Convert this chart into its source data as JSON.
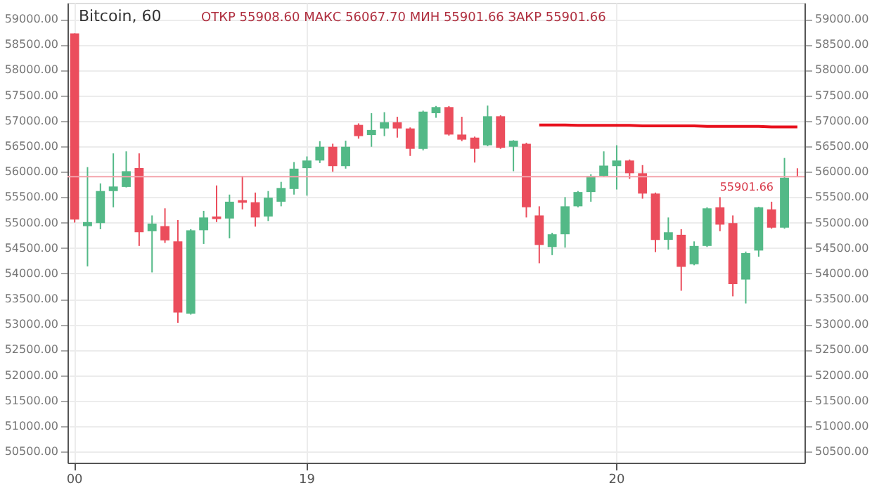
{
  "chart_data": {
    "type": "candlestick",
    "title": "Bitcoin, 60",
    "subtitle": "ОТКР 55908.60  МАКС 56067.70  МИН 55901.66  ЗАКР 55901.66",
    "categories": [
      "00",
      null,
      null,
      null,
      null,
      null,
      null,
      null,
      null,
      null,
      null,
      null,
      null,
      null,
      null,
      null,
      null,
      null,
      "19",
      null,
      null,
      null,
      null,
      null,
      null,
      null,
      null,
      null,
      null,
      null,
      null,
      null,
      null,
      null,
      null,
      null,
      null,
      null,
      null,
      null,
      null,
      null,
      "20",
      null,
      null,
      null,
      null,
      null,
      null,
      null,
      null,
      null,
      null,
      null,
      null,
      null,
      null
    ],
    "ohlc": [
      [
        58720,
        58720,
        55000,
        55060
      ],
      [
        54930,
        56090,
        54140,
        55010
      ],
      [
        54990,
        55770,
        54870,
        55620
      ],
      [
        55620,
        56360,
        55300,
        55710
      ],
      [
        55700,
        56400,
        55690,
        56010
      ],
      [
        56070,
        56360,
        54540,
        54810
      ],
      [
        54830,
        55140,
        54020,
        54980
      ],
      [
        54930,
        55280,
        54600,
        54650
      ],
      [
        54630,
        55050,
        53030,
        53230
      ],
      [
        53210,
        54870,
        53190,
        54850
      ],
      [
        54850,
        55230,
        54580,
        55100
      ],
      [
        55120,
        55730,
        55010,
        55070
      ],
      [
        55080,
        55550,
        54690,
        55410
      ],
      [
        55440,
        55920,
        55260,
        55390
      ],
      [
        55400,
        55590,
        54920,
        55100
      ],
      [
        55120,
        55620,
        55030,
        55490
      ],
      [
        55410,
        55800,
        55320,
        55680
      ],
      [
        55660,
        56190,
        55550,
        56060
      ],
      [
        56070,
        56300,
        55530,
        56220
      ],
      [
        56220,
        56600,
        56170,
        56490
      ],
      [
        56490,
        56550,
        56000,
        56110
      ],
      [
        56110,
        56610,
        56060,
        56490
      ],
      [
        56920,
        56950,
        56650,
        56700
      ],
      [
        56720,
        57150,
        56490,
        56820
      ],
      [
        56850,
        57170,
        56700,
        56970
      ],
      [
        56970,
        57080,
        56670,
        56850
      ],
      [
        56850,
        56870,
        56310,
        56450
      ],
      [
        56450,
        57200,
        56420,
        57180
      ],
      [
        57150,
        57290,
        57060,
        57270
      ],
      [
        57270,
        57290,
        56710,
        56730
      ],
      [
        56730,
        57080,
        56600,
        56630
      ],
      [
        56670,
        56690,
        56180,
        56450
      ],
      [
        56520,
        57300,
        56500,
        57090
      ],
      [
        57090,
        57110,
        56450,
        56470
      ],
      [
        56490,
        56620,
        56010,
        56610
      ],
      [
        56550,
        56570,
        55100,
        55300
      ],
      [
        55140,
        55320,
        54200,
        54560
      ],
      [
        54520,
        54800,
        54360,
        54770
      ],
      [
        54770,
        55500,
        54510,
        55320
      ],
      [
        55320,
        55620,
        55300,
        55600
      ],
      [
        55600,
        55950,
        55410,
        55920
      ],
      [
        55920,
        56400,
        55900,
        56120
      ],
      [
        56110,
        56520,
        55650,
        56220
      ],
      [
        56220,
        56240,
        55860,
        55970
      ],
      [
        55970,
        56130,
        55470,
        55570
      ],
      [
        55570,
        55590,
        54420,
        54660
      ],
      [
        54660,
        55100,
        54470,
        54810
      ],
      [
        54760,
        54870,
        53660,
        54130
      ],
      [
        54180,
        54630,
        54160,
        54540
      ],
      [
        54540,
        55300,
        54520,
        55280
      ],
      [
        55300,
        55500,
        54830,
        54960
      ],
      [
        54990,
        55140,
        53550,
        53790
      ],
      [
        53880,
        54430,
        53410,
        54400
      ],
      [
        54450,
        55310,
        54330,
        55300
      ],
      [
        55260,
        55410,
        54880,
        54900
      ],
      [
        54900,
        56270,
        54880,
        55880
      ],
      [
        55908.6,
        56067.7,
        55901.66,
        55901.66
      ]
    ],
    "colors": [
      "#eb4d5c",
      "#53b987",
      "#53b987",
      "#53b987",
      "#53b987",
      "#eb4d5c",
      "#53b987",
      "#eb4d5c",
      "#eb4d5c",
      "#53b987",
      "#53b987",
      "#eb4d5c",
      "#53b987",
      "#eb4d5c",
      "#eb4d5c",
      "#53b987",
      "#53b987",
      "#53b987",
      "#53b987",
      "#53b987",
      "#eb4d5c",
      "#53b987",
      "#eb4d5c",
      "#53b987",
      "#53b987",
      "#eb4d5c",
      "#eb4d5c",
      "#53b987",
      "#53b987",
      "#eb4d5c",
      "#eb4d5c",
      "#eb4d5c",
      "#53b987",
      "#eb4d5c",
      "#53b987",
      "#eb4d5c",
      "#eb4d5c",
      "#53b987",
      "#53b987",
      "#53b987",
      "#53b987",
      "#53b987",
      "#53b987",
      "#eb4d5c",
      "#eb4d5c",
      "#eb4d5c",
      "#53b987",
      "#eb4d5c",
      "#53b987",
      "#53b987",
      "#eb4d5c",
      "#eb4d5c",
      "#53b987",
      "#53b987",
      "#eb4d5c",
      "#53b987",
      "#eb4d5c"
    ],
    "series": [
      {
        "type": "line",
        "color": "#e8101c",
        "values": [
          null,
          null,
          null,
          null,
          null,
          null,
          null,
          null,
          null,
          null,
          null,
          null,
          null,
          null,
          null,
          null,
          null,
          null,
          null,
          null,
          null,
          null,
          null,
          null,
          null,
          null,
          null,
          null,
          null,
          null,
          null,
          null,
          null,
          null,
          null,
          null,
          56920,
          56920,
          56920,
          56910,
          56910,
          56910,
          56910,
          56910,
          56900,
          56900,
          56900,
          56900,
          56900,
          56890,
          56890,
          56890,
          56890,
          56890,
          56880,
          56880,
          56880
        ]
      }
    ],
    "ref_lines": [
      {
        "axis": "y",
        "value": 55901.66,
        "label": "55901.66",
        "color": "#f4a3ab",
        "line_style": "solid"
      }
    ],
    "ylim": [
      50280,
      59320
    ],
    "yticks": [
      {
        "value": 50500,
        "label": "50500.00"
      },
      {
        "value": 51000,
        "label": "51000.00"
      },
      {
        "value": 51500,
        "label": "51500.00"
      },
      {
        "value": 52000,
        "label": "52000.00"
      },
      {
        "value": 52500,
        "label": "52500.00"
      },
      {
        "value": 53000,
        "label": "53000.00"
      },
      {
        "value": 53500,
        "label": "53500.00"
      },
      {
        "value": 54000,
        "label": "54000.00"
      },
      {
        "value": 54500,
        "label": "54500.00"
      },
      {
        "value": 55000,
        "label": "55000.00"
      },
      {
        "value": 55500,
        "label": "55500.00"
      },
      {
        "value": 56000,
        "label": "56000.00"
      },
      {
        "value": 56500,
        "label": "56500.00"
      },
      {
        "value": 57000,
        "label": "57000.00"
      },
      {
        "value": 57500,
        "label": "57500.00"
      },
      {
        "value": 58000,
        "label": "58000.00"
      },
      {
        "value": 58500,
        "label": "58500.00"
      },
      {
        "value": 59000,
        "label": "59000.00"
      }
    ],
    "y2lim": [
      50280,
      59320
    ],
    "y2ticks": [
      {
        "value": 50500,
        "label": "50500.00"
      },
      {
        "value": 51000,
        "label": "51000.00"
      },
      {
        "value": 51500,
        "label": "51500.00"
      },
      {
        "value": 52000,
        "label": "52000.00"
      },
      {
        "value": 52500,
        "label": "52500.00"
      },
      {
        "value": 53000,
        "label": "53000.00"
      },
      {
        "value": 53500,
        "label": "53500.00"
      },
      {
        "value": 54000,
        "label": "54000.00"
      },
      {
        "value": 54500,
        "label": "54500.00"
      },
      {
        "value": 55000,
        "label": "55000.00"
      },
      {
        "value": 55500,
        "label": "55500.00"
      },
      {
        "value": 56000,
        "label": "56000.00"
      },
      {
        "value": 56500,
        "label": "56500.00"
      },
      {
        "value": 57000,
        "label": "57000.00"
      },
      {
        "value": 57500,
        "label": "57500.00"
      },
      {
        "value": 58000,
        "label": "58000.00"
      },
      {
        "value": 58500,
        "label": "58500.00"
      },
      {
        "value": 59000,
        "label": "59000.00"
      }
    ],
    "grid": true
  }
}
